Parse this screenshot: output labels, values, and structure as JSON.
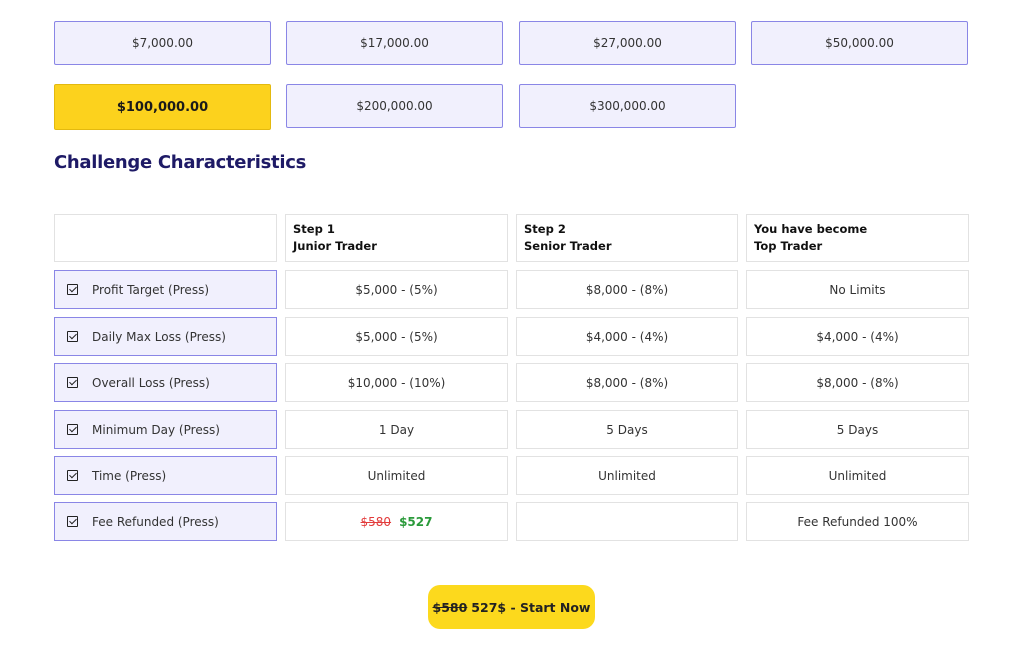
{
  "amounts": [
    {
      "label": "$7,000.00",
      "selected": false
    },
    {
      "label": "$17,000.00",
      "selected": false
    },
    {
      "label": "$27,000.00",
      "selected": false
    },
    {
      "label": "$50,000.00",
      "selected": false
    },
    {
      "label": "$100,000.00",
      "selected": true
    },
    {
      "label": "$200,000.00",
      "selected": false
    },
    {
      "label": "$300,000.00",
      "selected": false
    }
  ],
  "heading": "Challenge Characteristics",
  "columns": [
    {
      "line1": "Step 1",
      "line2": "Junior Trader"
    },
    {
      "line1": "Step 2",
      "line2": "Senior Trader"
    },
    {
      "line1": "You have become",
      "line2": "Top Trader"
    }
  ],
  "rows": [
    {
      "label": "Profit Target (Press)",
      "values": [
        "$5,000 - (5%)",
        "$8,000 - (8%)",
        "No Limits"
      ]
    },
    {
      "label": "Daily Max Loss (Press)",
      "values": [
        "$5,000 - (5%)",
        "$4,000 - (4%)",
        "$4,000 - (4%)"
      ]
    },
    {
      "label": "Overall Loss (Press)",
      "values": [
        "$10,000 - (10%)",
        "$8,000 - (8%)",
        "$8,000 - (8%)"
      ]
    },
    {
      "label": "Minimum Day (Press)",
      "values": [
        "1 Day",
        "5 Days",
        "5 Days"
      ]
    },
    {
      "label": "Time (Press)",
      "values": [
        "Unlimited",
        "Unlimited",
        "Unlimited"
      ]
    },
    {
      "label": "Fee Refunded (Press)",
      "values": [
        "",
        "",
        "Fee Refunded 100%"
      ]
    }
  ],
  "fee": {
    "old": "$580",
    "new": "$527"
  },
  "cta": {
    "old": "$580",
    "rest": "527$ - Start Now"
  },
  "colors": {
    "accent": "#fcd21d",
    "border": "#8a86e6",
    "label_bg": "#f1f0fd",
    "heading": "#1e1a66"
  }
}
